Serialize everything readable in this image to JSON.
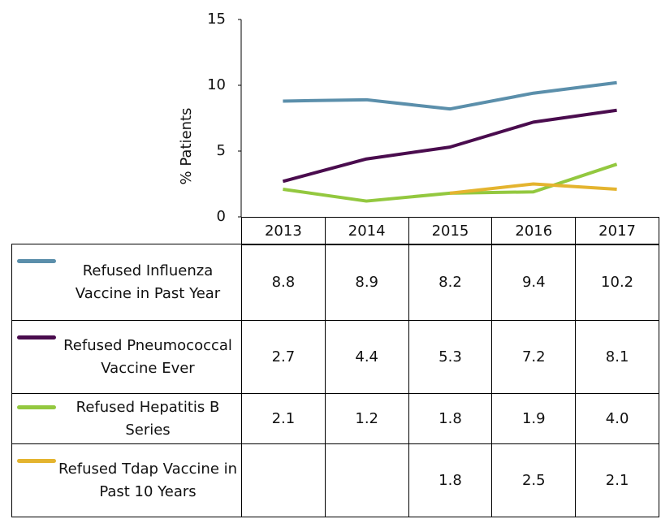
{
  "chart_data": {
    "type": "line",
    "y_label": "% Patients",
    "categories": [
      "2013",
      "2014",
      "2015",
      "2016",
      "2017"
    ],
    "ylim": [
      0,
      15
    ],
    "yticks": [
      0,
      5,
      10,
      15
    ],
    "series": [
      {
        "name": "Refused Influenza Vaccine in Past Year",
        "color": "#5b8fab",
        "values": [
          8.8,
          8.9,
          8.2,
          9.4,
          10.2
        ],
        "value_labels": [
          "8.8",
          "8.9",
          "8.2",
          "9.4",
          "10.2"
        ]
      },
      {
        "name": "Refused Pneumococcal Vaccine Ever",
        "color": "#4a0c4e",
        "values": [
          2.7,
          4.4,
          5.3,
          7.2,
          8.1
        ],
        "value_labels": [
          "2.7",
          "4.4",
          "5.3",
          "7.2",
          "8.1"
        ]
      },
      {
        "name": "Refused Hepatitis B Series",
        "color": "#93c83f",
        "values": [
          2.1,
          1.2,
          1.8,
          1.9,
          4.0
        ],
        "value_labels": [
          "2.1",
          "1.2",
          "1.8",
          "1.9",
          "4.0"
        ]
      },
      {
        "name": "Refused Tdap Vaccine in Past 10 Years",
        "color": "#e4b42f",
        "values": [
          null,
          null,
          1.8,
          2.5,
          2.1
        ],
        "value_labels": [
          null,
          null,
          "1.8",
          "2.5",
          "2.1"
        ]
      }
    ]
  }
}
